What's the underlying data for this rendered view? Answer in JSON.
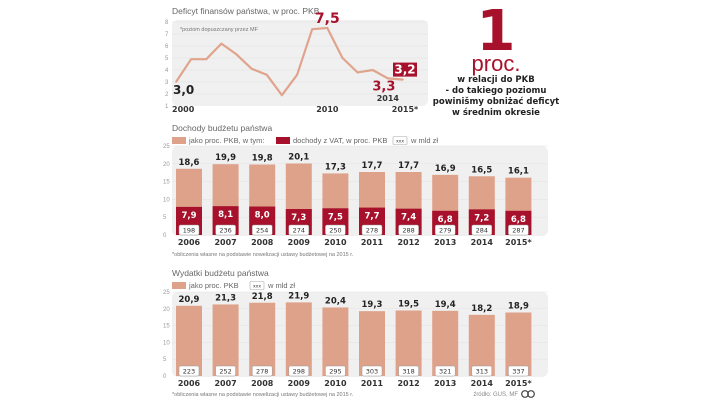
{
  "colors": {
    "accent": "#a8112c",
    "bar": "#dea28b",
    "line": "#e0a48d",
    "panel": "#f0f0f0",
    "grid": "#e2e2e2"
  },
  "highlight": {
    "number": "1",
    "unit": "proc.",
    "lines": [
      "w relacji do PKB",
      "- do takiego poziomu",
      "powinišmy obniżać deficyt",
      "w średnim okresie"
    ]
  },
  "footer": {
    "note_revenue": "*obliczenia własne na podstawie nowelizacji ustawy budżetowej na 2015 r.",
    "note_expenditure": "*obliczenia własne na podstawie nowelizacji ustawy budżetowej na 2015 r.",
    "source": "źródło: GUS, MF",
    "logo": "cc-logo-icon"
  },
  "chart_data": [
    {
      "type": "line",
      "title": "Deficyt finansów państwa, w proc. PKB",
      "annotation": "*poziom dopuszczany przez MF",
      "x": [
        2000,
        2001,
        2002,
        2003,
        2004,
        2005,
        2006,
        2007,
        2008,
        2009,
        2010,
        2011,
        2012,
        2013,
        2014,
        2015
      ],
      "series": [
        {
          "name": "Deficyt",
          "values": [
            3.0,
            4.9,
            4.9,
            6.2,
            5.3,
            4.1,
            3.6,
            1.9,
            3.6,
            7.4,
            7.5,
            5.0,
            3.8,
            4.0,
            3.3,
            3.2
          ]
        }
      ],
      "xticks": [
        "2000",
        "2010",
        "2014",
        "2015*"
      ],
      "yticks": [
        1,
        2,
        3,
        4,
        5,
        6,
        7,
        8
      ],
      "ylim": [
        1,
        8
      ],
      "labels": [
        {
          "x": 2000,
          "text": "3,0",
          "style": "dark"
        },
        {
          "x": 2010,
          "text": "7,5",
          "style": "red"
        },
        {
          "x": 2014,
          "text": "3,3",
          "style": "red"
        },
        {
          "x": 2015,
          "text": "3,2",
          "style": "boxed"
        }
      ],
      "grid": true
    },
    {
      "type": "bar",
      "title": "Dochody budżetu państwa",
      "legend": [
        "jako proc. PKB, w tym:",
        "dochody z VAT, w proc. PKB",
        "w mld zł"
      ],
      "legend_box_text": "xxx",
      "categories": [
        "2006",
        "2007",
        "2008",
        "2009",
        "2010",
        "2011",
        "2012",
        "2013",
        "2014",
        "2015*"
      ],
      "series": [
        {
          "name": "jako proc. PKB",
          "values": [
            18.6,
            19.9,
            19.8,
            20.1,
            17.3,
            17.7,
            17.7,
            16.9,
            16.5,
            16.1
          ],
          "labels": [
            "18,6",
            "19,9",
            "19,8",
            "20,1",
            "17,3",
            "17,7",
            "17,7",
            "16,9",
            "16,5",
            "16,1"
          ]
        },
        {
          "name": "dochody z VAT, w proc. PKB",
          "values": [
            7.9,
            8.1,
            8.0,
            7.3,
            7.5,
            7.7,
            7.4,
            6.8,
            7.2,
            6.8
          ],
          "labels": [
            "7,9",
            "8,1",
            "8,0",
            "7,3",
            "7,5",
            "7,7",
            "7,4",
            "6,8",
            "7,2",
            "6,8"
          ]
        },
        {
          "name": "w mld zł",
          "values": [
            198,
            236,
            254,
            274,
            250,
            278,
            288,
            279,
            284,
            287
          ]
        }
      ],
      "yticks": [
        0,
        5,
        10,
        15,
        20,
        25
      ],
      "ylim": [
        0,
        25
      ],
      "grid": true
    },
    {
      "type": "bar",
      "title": "Wydatki budżetu państwa",
      "legend": [
        "jako proc. PKB",
        "w mld zł"
      ],
      "legend_box_text": "xxx",
      "categories": [
        "2006",
        "2007",
        "2008",
        "2009",
        "2010",
        "2011",
        "2012",
        "2013",
        "2014",
        "2015*"
      ],
      "series": [
        {
          "name": "jako proc. PKB",
          "values": [
            20.9,
            21.3,
            21.8,
            21.9,
            20.4,
            19.3,
            19.5,
            19.4,
            18.2,
            18.9
          ],
          "labels": [
            "20,9",
            "21,3",
            "21,8",
            "21,9",
            "20,4",
            "19,3",
            "19,5",
            "19,4",
            "18,2",
            "18,9"
          ]
        },
        {
          "name": "w mld zł",
          "values": [
            223,
            252,
            278,
            298,
            295,
            303,
            318,
            321,
            313,
            337
          ]
        }
      ],
      "yticks": [
        0,
        5,
        10,
        15,
        20,
        25
      ],
      "ylim": [
        0,
        25
      ],
      "grid": true
    }
  ]
}
